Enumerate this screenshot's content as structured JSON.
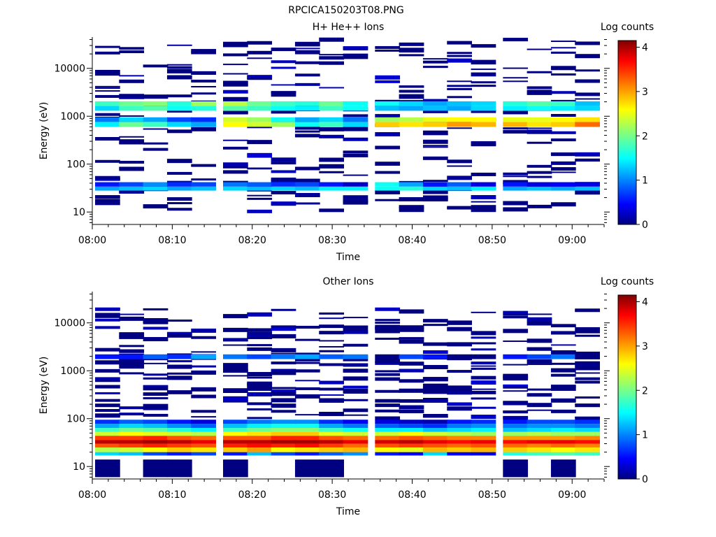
{
  "figure_title": "RPCICA150203T08.PNG",
  "chart_data": [
    {
      "type": "heatmap",
      "title": "H+ He++ Ions",
      "xlabel": "Time",
      "ylabel": "Energy (eV)",
      "y_scale": "log",
      "y_range_eV": [
        5.5,
        45000
      ],
      "x_range": [
        "08:00",
        "09:04"
      ],
      "x_ticks": [
        "08:00",
        "08:10",
        "08:20",
        "08:30",
        "08:40",
        "08:50",
        "09:00"
      ],
      "y_ticks": [
        "10",
        "100",
        "1000",
        "10000"
      ],
      "colorbar": {
        "label": "Log counts",
        "range": [
          0,
          4.15
        ],
        "ticks": [
          "0",
          "1",
          "2",
          "3",
          "4"
        ],
        "colormap": "jet"
      },
      "time_bins": [
        "08:02",
        "08:05",
        "08:08",
        "08:11",
        "08:14",
        "08:18",
        "08:21",
        "08:24",
        "08:27",
        "08:30",
        "08:33",
        "08:37",
        "08:40",
        "08:43",
        "08:46",
        "08:49",
        "08:53",
        "08:56",
        "08:59",
        "09:02"
      ],
      "bands": [
        {
          "energy_eV": [
            28,
            34
          ],
          "log_counts": [
            1.2,
            1.3,
            1.4,
            1.2,
            1.3,
            1.4,
            1.3,
            1.4,
            1.3,
            1.5,
            1.5,
            1.6,
            1.7,
            1.4,
            1.3,
            1.5,
            1.2,
            1.3,
            1.2,
            1.3
          ]
        },
        {
          "energy_eV": [
            34,
            42
          ],
          "log_counts": [
            0.6,
            0.8,
            1.1,
            0.7,
            0.8,
            1.0,
            0.9,
            0.7,
            0.8,
            0.6,
            0.3,
            1.6,
            1.2,
            0.6,
            0.9,
            0.4,
            0.6,
            0.4,
            0.5,
            0.4
          ]
        },
        {
          "energy_eV": [
            600,
            760
          ],
          "log_counts": [
            1.5,
            2.0,
            1.8,
            1.4,
            1.2,
            2.6,
            2.4,
            2.2,
            1.6,
            1.8,
            1.4,
            2.8,
            2.7,
            2.8,
            3.0,
            2.9,
            2.9,
            2.7,
            2.8,
            3.2
          ]
        },
        {
          "energy_eV": [
            760,
            950
          ],
          "log_counts": [
            1.0,
            1.4,
            1.2,
            0.8,
            0.7,
            2.4,
            2.2,
            1.6,
            1.2,
            1.4,
            1.0,
            2.2,
            2.3,
            2.5,
            2.6,
            2.6,
            2.5,
            2.5,
            2.6,
            2.7
          ]
        },
        {
          "energy_eV": [
            1300,
            1650
          ],
          "log_counts": [
            1.4,
            1.8,
            1.9,
            1.6,
            1.7,
            1.9,
            1.8,
            1.6,
            1.5,
            1.8,
            1.6,
            1.3,
            1.2,
            1.3,
            1.2,
            1.4,
            1.5,
            1.6,
            1.5,
            1.4
          ]
        },
        {
          "energy_eV": [
            1650,
            2050
          ],
          "log_counts": [
            1.8,
            2.0,
            2.1,
            1.7,
            2.2,
            2.3,
            2.0,
            1.8,
            1.7,
            2.0,
            1.6,
            1.6,
            1.4,
            1.2,
            1.3,
            1.4,
            1.7,
            1.9,
            1.8,
            1.3
          ]
        }
      ],
      "sparse_counts": "log counts 0–0.5 at scattered energies 10–40000 eV",
      "low_energy_counts": {
        "energy_eV": [
          10,
          14
        ],
        "time_bins": [
          "08:40",
          "08:49"
        ],
        "log_counts": 0
      }
    },
    {
      "type": "heatmap",
      "title": "Other Ions",
      "xlabel": "Time",
      "ylabel": "Energy (eV)",
      "y_scale": "log",
      "y_range_eV": [
        5.5,
        45000
      ],
      "x_range": [
        "08:00",
        "09:04"
      ],
      "x_ticks": [
        "08:00",
        "08:10",
        "08:20",
        "08:30",
        "08:40",
        "08:50",
        "09:00"
      ],
      "y_ticks": [
        "10",
        "100",
        "1000",
        "10000"
      ],
      "colorbar": {
        "label": "Log counts",
        "range": [
          0,
          4.15
        ],
        "ticks": [
          "0",
          "1",
          "2",
          "3",
          "4"
        ],
        "colormap": "jet"
      },
      "time_bins": [
        "08:02",
        "08:05",
        "08:08",
        "08:11",
        "08:14",
        "08:18",
        "08:21",
        "08:24",
        "08:27",
        "08:30",
        "08:33",
        "08:37",
        "08:40",
        "08:43",
        "08:46",
        "08:49",
        "08:53",
        "08:56",
        "08:59",
        "09:02"
      ],
      "bands": [
        {
          "energy_eV": [
            17,
            20
          ],
          "log_counts": [
            1.4,
            1.3,
            0.8,
            0.6,
            0.8,
            0.6,
            1.3,
            0.8,
            0.6,
            0.9,
            1.1,
            0.6,
            0.5,
            1.4,
            0.5,
            0.4,
            1.7,
            1.8,
            1.9,
            1.8
          ]
        },
        {
          "energy_eV": [
            20,
            25
          ],
          "log_counts": [
            2.3,
            2.4,
            2.6,
            2.8,
            2.7,
            2.8,
            3.0,
            2.6,
            2.7,
            2.8,
            2.9,
            2.6,
            2.5,
            2.9,
            2.8,
            2.9,
            2.8,
            2.7,
            2.6,
            2.7
          ]
        },
        {
          "energy_eV": [
            25,
            30
          ],
          "log_counts": [
            3.3,
            3.4,
            3.5,
            3.4,
            3.3,
            3.5,
            3.6,
            3.5,
            3.6,
            3.4,
            3.2,
            3.3,
            3.4,
            3.3,
            3.2,
            3.3,
            3.2,
            3.1,
            3.2,
            3.1
          ]
        },
        {
          "energy_eV": [
            30,
            36
          ],
          "log_counts": [
            3.9,
            3.9,
            4.0,
            3.9,
            3.7,
            3.9,
            3.9,
            4.0,
            4.0,
            3.9,
            3.7,
            3.8,
            3.9,
            3.7,
            3.6,
            3.7,
            3.6,
            3.7,
            3.7,
            3.6
          ]
        },
        {
          "energy_eV": [
            36,
            44
          ],
          "log_counts": [
            3.4,
            3.4,
            3.5,
            3.3,
            3.2,
            3.3,
            3.3,
            3.5,
            3.5,
            3.3,
            3.2,
            3.2,
            3.3,
            3.2,
            3.1,
            3.1,
            3.0,
            3.0,
            3.0,
            3.1
          ]
        },
        {
          "energy_eV": [
            44,
            53
          ],
          "log_counts": [
            2.4,
            2.6,
            2.5,
            2.4,
            2.3,
            2.6,
            2.7,
            2.8,
            2.8,
            2.5,
            2.4,
            2.4,
            2.6,
            2.4,
            2.3,
            2.2,
            2.2,
            2.3,
            2.2,
            2.2
          ]
        },
        {
          "energy_eV": [
            53,
            64
          ],
          "log_counts": [
            1.8,
            2.0,
            1.9,
            1.7,
            1.5,
            1.8,
            2.0,
            2.1,
            2.1,
            1.8,
            1.6,
            1.5,
            1.5,
            1.3,
            1.4,
            1.5,
            1.3,
            1.4,
            1.5,
            1.4
          ]
        },
        {
          "energy_eV": [
            64,
            78
          ],
          "log_counts": [
            1.2,
            1.4,
            1.3,
            1.1,
            0.9,
            1.3,
            1.5,
            1.6,
            1.6,
            1.2,
            1.0,
            0.9,
            0.8,
            0.7,
            1.0,
            1.1,
            1.0,
            1.1,
            1.1,
            1.0
          ]
        },
        {
          "energy_eV": [
            78,
            95
          ],
          "log_counts": [
            0.7,
            0.9,
            0.8,
            0.6,
            0.4,
            0.8,
            1.0,
            1.1,
            1.1,
            0.7,
            0.5,
            0.4,
            0.3,
            0.2,
            0.6,
            0.7,
            0.6,
            0.8,
            0.8,
            0.7
          ]
        },
        {
          "energy_eV": [
            1750,
            2200
          ],
          "log_counts": [
            0.6,
            0.6,
            0.9,
            0.7,
            1.2,
            1.0,
            0.8,
            1.0,
            1.2,
            0.9,
            1.0,
            0.0,
            0.8,
            0.6,
            0.0,
            0.0,
            0.6,
            0.8,
            1.0,
            0.0
          ]
        }
      ],
      "sparse_counts": "log counts 0–0.8 at scattered energies 100–20000 eV",
      "low_energy_counts": {
        "energy_eV": [
          6,
          14
        ],
        "time_bins": [
          "08:02",
          "08:08",
          "08:11",
          "08:18",
          "08:27",
          "08:30",
          "08:53",
          "08:59"
        ],
        "log_counts": 0
      }
    }
  ]
}
